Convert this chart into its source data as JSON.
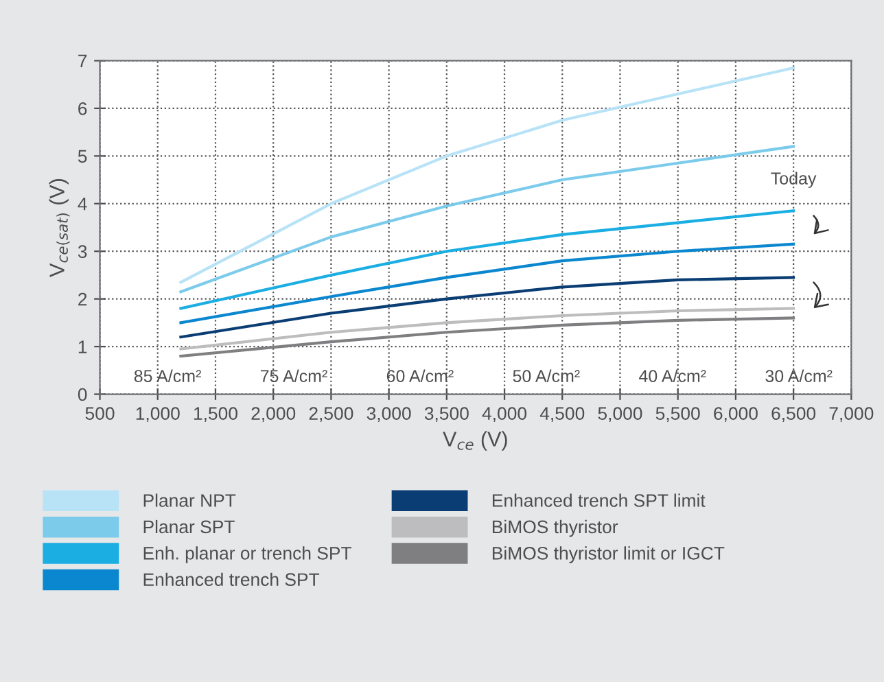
{
  "chart_data": {
    "type": "line",
    "xlabel": "V$_{ce}$ (V)",
    "ylabel": "V$_{ce(sat)}$ (V)",
    "x": [
      1200,
      2500,
      3500,
      4500,
      5500,
      6500
    ],
    "series": [
      {
        "name": "Planar NPT",
        "color": "#b8e3f7",
        "values": [
          2.35,
          4.0,
          5.0,
          5.75,
          6.3,
          6.85
        ]
      },
      {
        "name": "Planar SPT",
        "color": "#7dcbeb",
        "values": [
          2.15,
          3.3,
          3.95,
          4.5,
          4.85,
          5.2
        ]
      },
      {
        "name": "Enh. planar or trench SPT",
        "color": "#1aaee3",
        "values": [
          1.8,
          2.5,
          3.0,
          3.35,
          3.6,
          3.85
        ]
      },
      {
        "name": "Enhanced trench SPT",
        "color": "#0b87cf",
        "values": [
          1.5,
          2.05,
          2.45,
          2.8,
          3.0,
          3.15
        ]
      },
      {
        "name": "Enhanced trench SPT limit",
        "color": "#0a3d73",
        "values": [
          1.2,
          1.7,
          2.0,
          2.25,
          2.4,
          2.45
        ]
      },
      {
        "name": "BiMOS thyristor",
        "color": "#bdbdbf",
        "values": [
          0.95,
          1.3,
          1.5,
          1.65,
          1.75,
          1.8
        ]
      },
      {
        "name": "BiMOS thyristor limit or IGCT",
        "color": "#7f7f82",
        "values": [
          0.8,
          1.1,
          1.3,
          1.45,
          1.55,
          1.6
        ]
      }
    ],
    "xlim": [
      500,
      7000
    ],
    "ylim": [
      0,
      7
    ],
    "xticks": [
      500,
      {
        "value": 1000,
        "label": "1,000"
      },
      {
        "value": 1500,
        "label": "1,500"
      },
      {
        "value": 2000,
        "label": "2,000"
      },
      {
        "value": 2500,
        "label": "2,500"
      },
      {
        "value": 3000,
        "label": "3,000"
      },
      {
        "value": 3500,
        "label": "3,500"
      },
      {
        "value": 4000,
        "label": "4,000"
      },
      {
        "value": 4500,
        "label": "4,500"
      },
      {
        "value": 5000,
        "label": "5,000"
      },
      {
        "value": 5500,
        "label": "5,500"
      },
      {
        "value": 6000,
        "label": "6,000"
      },
      {
        "value": 6500,
        "label": "6,500"
      },
      {
        "value": 7000,
        "label": "7,000"
      }
    ],
    "yticks": [
      0,
      1,
      2,
      3,
      4,
      5,
      6,
      7
    ],
    "annotations": [
      "85 A/cm²",
      "75 A/cm²",
      "60 A/cm²",
      "50 A/cm²",
      "40 A/cm²",
      "30 A/cm²",
      {
        "text": "Today",
        "x": 6500,
        "y": 3.85
      }
    ],
    "grid": true,
    "legend": "bottom",
    "marker": "none",
    "line_style": "solid"
  }
}
